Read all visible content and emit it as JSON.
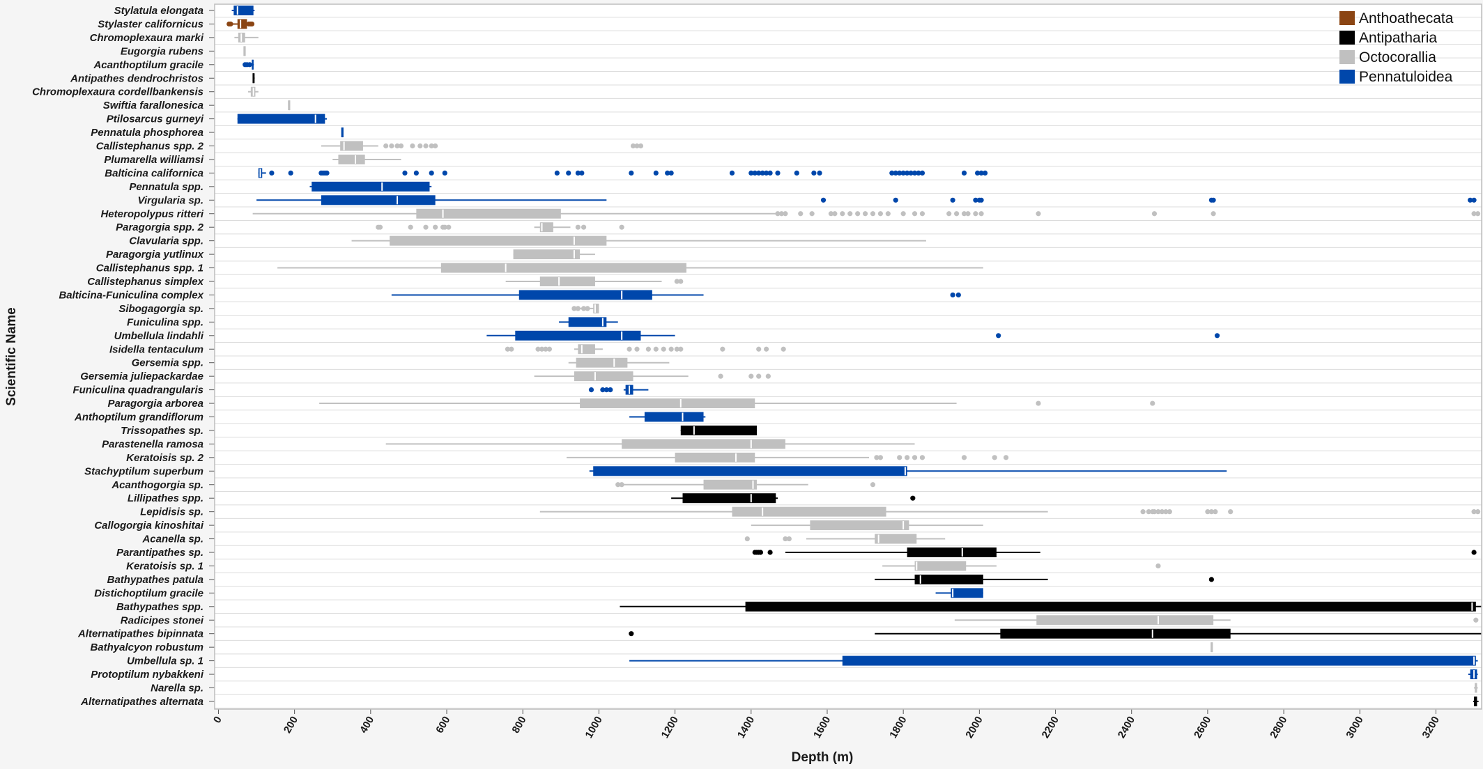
{
  "chart_data": {
    "type": "boxplot",
    "xlabel": "Depth (m)",
    "ylabel": "Scientific Name",
    "xlim": [
      -10,
      3320
    ],
    "x_ticks": [
      0,
      200,
      400,
      600,
      800,
      1000,
      1200,
      1400,
      1600,
      1800,
      2000,
      2200,
      2400,
      2600,
      2800,
      3000,
      3200
    ],
    "grid": "horizontal",
    "legend_position": "top-right",
    "groups": [
      {
        "name": "Anthoathecata",
        "color": "#8B4513"
      },
      {
        "name": "Antipatharia",
        "color": "#000000"
      },
      {
        "name": "Octocorallia",
        "color": "#C0C0C0"
      },
      {
        "name": "Pennatuloidea",
        "color": "#0047AB"
      }
    ],
    "rows": [
      {
        "name": "Stylatula elongata",
        "group": "Pennatuloidea",
        "min": 35,
        "q1": 40,
        "median": 50,
        "q3": 92,
        "max": 95,
        "outliers": []
      },
      {
        "name": "Stylaster californicus",
        "group": "Anthoathecata",
        "min": 28,
        "q1": 50,
        "median": 58,
        "q3": 75,
        "max": 88,
        "outliers": [
          28,
          32,
          80,
          85,
          88
        ]
      },
      {
        "name": "Chromoplexaura marki",
        "group": "Octocorallia",
        "min": 42,
        "q1": 52,
        "median": 60,
        "q3": 70,
        "max": 105,
        "outliers": []
      },
      {
        "name": "Eugorgia rubens",
        "group": "Octocorallia",
        "min": 68,
        "q1": 68,
        "median": 68,
        "q3": 68,
        "max": 68,
        "outliers": []
      },
      {
        "name": "Acanthoptilum gracile",
        "group": "Pennatuloidea",
        "min": 88,
        "q1": 88,
        "median": 90,
        "q3": 92,
        "max": 93,
        "outliers": [
          70,
          75,
          82
        ]
      },
      {
        "name": "Antipathes dendrochristos",
        "group": "Antipatharia",
        "min": 90,
        "q1": 90,
        "median": 92,
        "q3": 95,
        "max": 95,
        "outliers": []
      },
      {
        "name": "Chromoplexaura cordellbankensis",
        "group": "Octocorallia",
        "min": 78,
        "q1": 85,
        "median": 92,
        "q3": 97,
        "max": 105,
        "outliers": []
      },
      {
        "name": "Swiftia farallonesica",
        "group": "Octocorallia",
        "min": 185,
        "q1": 185,
        "median": 185,
        "q3": 185,
        "max": 185,
        "outliers": []
      },
      {
        "name": "Ptilosarcus gurneyi",
        "group": "Pennatuloidea",
        "min": 50,
        "q1": 50,
        "median": 255,
        "q3": 280,
        "max": 285,
        "outliers": []
      },
      {
        "name": "Pennatula phosphorea",
        "group": "Pennatuloidea",
        "min": 325,
        "q1": 325,
        "median": 325,
        "q3": 325,
        "max": 325,
        "outliers": []
      },
      {
        "name": "Callistephanus spp. 2",
        "group": "Octocorallia",
        "min": 270,
        "q1": 320,
        "median": 330,
        "q3": 380,
        "max": 420,
        "outliers": [
          440,
          455,
          470,
          480,
          510,
          530,
          545,
          560,
          570,
          1090,
          1100,
          1110
        ]
      },
      {
        "name": "Plumarella williamsi",
        "group": "Octocorallia",
        "min": 300,
        "q1": 315,
        "median": 360,
        "q3": 385,
        "max": 480,
        "outliers": []
      },
      {
        "name": "Balticina californica",
        "group": "Pennatuloidea",
        "min": 105,
        "q1": 105,
        "median": 110,
        "q3": 115,
        "max": 125,
        "outliers": [
          140,
          190,
          270,
          275,
          280,
          285,
          490,
          520,
          560,
          595,
          890,
          920,
          945,
          955,
          1085,
          1150,
          1180,
          1190,
          1350,
          1400,
          1410,
          1420,
          1430,
          1440,
          1450,
          1470,
          1520,
          1565,
          1580,
          1770,
          1780,
          1790,
          1800,
          1810,
          1820,
          1830,
          1840,
          1850,
          1960,
          1995,
          2005,
          2015
        ]
      },
      {
        "name": "Pennatula spp.",
        "group": "Pennatuloidea",
        "min": 240,
        "q1": 245,
        "median": 430,
        "q3": 555,
        "max": 560,
        "outliers": []
      },
      {
        "name": "Virgularia sp.",
        "group": "Pennatuloidea",
        "min": 100,
        "q1": 270,
        "median": 470,
        "q3": 570,
        "max": 1020,
        "outliers": [
          1590,
          1780,
          1930,
          1990,
          2000,
          2005,
          2610,
          2615,
          3290,
          3300
        ]
      },
      {
        "name": "Heteropolypus ritteri",
        "group": "Octocorallia",
        "min": 90,
        "q1": 520,
        "median": 590,
        "q3": 900,
        "max": 1465,
        "outliers": [
          1470,
          1480,
          1490,
          1530,
          1560,
          1610,
          1620,
          1640,
          1660,
          1680,
          1700,
          1720,
          1740,
          1760,
          1800,
          1830,
          1850,
          1920,
          1940,
          1960,
          1970,
          1990,
          2005,
          2155,
          2460,
          2615,
          3300,
          3310
        ]
      },
      {
        "name": "Paragorgia spp. 2",
        "group": "Octocorallia",
        "min": 830,
        "q1": 845,
        "median": 850,
        "q3": 880,
        "max": 925,
        "outliers": [
          420,
          425,
          505,
          545,
          570,
          590,
          595,
          605,
          945,
          960,
          1060
        ]
      },
      {
        "name": "Clavularia spp.",
        "group": "Octocorallia",
        "min": 350,
        "q1": 450,
        "median": 935,
        "q3": 1020,
        "max": 1860,
        "outliers": []
      },
      {
        "name": "Paragorgia yutlinux",
        "group": "Octocorallia",
        "min": 775,
        "q1": 775,
        "median": 935,
        "q3": 950,
        "max": 990,
        "outliers": []
      },
      {
        "name": "Callistephanus spp. 1",
        "group": "Octocorallia",
        "min": 155,
        "q1": 585,
        "median": 755,
        "q3": 1230,
        "max": 2010,
        "outliers": []
      },
      {
        "name": "Callistephanus simplex",
        "group": "Octocorallia",
        "min": 755,
        "q1": 845,
        "median": 895,
        "q3": 990,
        "max": 1165,
        "outliers": [
          1205,
          1215
        ]
      },
      {
        "name": "Balticina-Funiculina complex",
        "group": "Pennatuloidea",
        "min": 455,
        "q1": 790,
        "median": 1060,
        "q3": 1140,
        "max": 1275,
        "outliers": [
          1930,
          1945
        ]
      },
      {
        "name": "Sibogagorgia sp.",
        "group": "Octocorallia",
        "min": 930,
        "q1": 985,
        "median": 990,
        "q3": 1000,
        "max": 1000,
        "outliers": [
          935,
          945,
          960,
          970
        ]
      },
      {
        "name": "Funiculina spp.",
        "group": "Pennatuloidea",
        "min": 895,
        "q1": 920,
        "median": 1010,
        "q3": 1020,
        "max": 1050,
        "outliers": []
      },
      {
        "name": "Umbellula lindahli",
        "group": "Pennatuloidea",
        "min": 705,
        "q1": 780,
        "median": 1060,
        "q3": 1110,
        "max": 1200,
        "outliers": [
          2050,
          2625
        ]
      },
      {
        "name": "Isidella tentaculum",
        "group": "Octocorallia",
        "min": 935,
        "q1": 945,
        "median": 955,
        "q3": 990,
        "max": 1010,
        "outliers": [
          760,
          770,
          840,
          850,
          860,
          870,
          1080,
          1100,
          1130,
          1150,
          1170,
          1190,
          1205,
          1215,
          1325,
          1420,
          1440,
          1485
        ]
      },
      {
        "name": "Gersemia spp.",
        "group": "Octocorallia",
        "min": 920,
        "q1": 940,
        "median": 1040,
        "q3": 1075,
        "max": 1185,
        "outliers": []
      },
      {
        "name": "Gersemia juliepackardae",
        "group": "Octocorallia",
        "min": 830,
        "q1": 935,
        "median": 990,
        "q3": 1090,
        "max": 1235,
        "outliers": [
          1320,
          1400,
          1420,
          1445
        ]
      },
      {
        "name": "Funiculina quadrangularis",
        "group": "Pennatuloidea",
        "min": 1065,
        "q1": 1070,
        "median": 1080,
        "q3": 1090,
        "max": 1130,
        "outliers": [
          980,
          1010,
          1020,
          1030
        ]
      },
      {
        "name": "Paragorgia arborea",
        "group": "Octocorallia",
        "min": 265,
        "q1": 950,
        "median": 1215,
        "q3": 1410,
        "max": 1940,
        "outliers": [
          2155,
          2455
        ]
      },
      {
        "name": "Anthoptilum grandiflorum",
        "group": "Pennatuloidea",
        "min": 1080,
        "q1": 1120,
        "median": 1220,
        "q3": 1275,
        "max": 1280,
        "outliers": []
      },
      {
        "name": "Trissopathes sp.",
        "group": "Antipatharia",
        "min": 1215,
        "q1": 1215,
        "median": 1250,
        "q3": 1415,
        "max": 1415,
        "outliers": []
      },
      {
        "name": "Parastenella ramosa",
        "group": "Octocorallia",
        "min": 440,
        "q1": 1060,
        "median": 1400,
        "q3": 1490,
        "max": 1830,
        "outliers": []
      },
      {
        "name": "Keratoisis sp. 2",
        "group": "Octocorallia",
        "min": 915,
        "q1": 1200,
        "median": 1360,
        "q3": 1410,
        "max": 1710,
        "outliers": [
          1730,
          1740,
          1790,
          1810,
          1830,
          1850,
          1960,
          2040,
          2070
        ]
      },
      {
        "name": "Stachyptilum superbum",
        "group": "Pennatuloidea",
        "min": 975,
        "q1": 985,
        "median": 1805,
        "q3": 1810,
        "max": 2650,
        "outliers": []
      },
      {
        "name": "Acanthogorgia sp.",
        "group": "Octocorallia",
        "min": 1060,
        "q1": 1275,
        "median": 1405,
        "q3": 1415,
        "max": 1550,
        "outliers": [
          1050,
          1060,
          1720
        ]
      },
      {
        "name": "Lillipathes spp.",
        "group": "Antipatharia",
        "min": 1190,
        "q1": 1220,
        "median": 1400,
        "q3": 1465,
        "max": 1470,
        "outliers": [
          1825
        ]
      },
      {
        "name": "Lepidisis sp.",
        "group": "Octocorallia",
        "min": 845,
        "q1": 1350,
        "median": 1430,
        "q3": 1755,
        "max": 2180,
        "outliers": [
          2430,
          2445,
          2455,
          2460,
          2470,
          2480,
          2490,
          2500,
          2600,
          2610,
          2620,
          2660,
          3300,
          3310
        ]
      },
      {
        "name": "Callogorgia kinoshitai",
        "group": "Octocorallia",
        "min": 1400,
        "q1": 1555,
        "median": 1800,
        "q3": 1815,
        "max": 2010,
        "outliers": []
      },
      {
        "name": "Acanella sp.",
        "group": "Octocorallia",
        "min": 1545,
        "q1": 1725,
        "median": 1735,
        "q3": 1835,
        "max": 1910,
        "outliers": [
          1390,
          1490,
          1500
        ]
      },
      {
        "name": "Parantipathes sp.",
        "group": "Antipatharia",
        "min": 1490,
        "q1": 1810,
        "median": 1955,
        "q3": 2045,
        "max": 2160,
        "outliers": [
          1410,
          1415,
          1420,
          1425,
          1450,
          3300
        ]
      },
      {
        "name": "Keratoisis sp. 1",
        "group": "Octocorallia",
        "min": 1745,
        "q1": 1830,
        "median": 1835,
        "q3": 1965,
        "max": 2045,
        "outliers": [
          2470
        ]
      },
      {
        "name": "Bathypathes patula",
        "group": "Antipatharia",
        "min": 1725,
        "q1": 1830,
        "median": 1845,
        "q3": 2010,
        "max": 2180,
        "outliers": [
          2610
        ]
      },
      {
        "name": "Distichoptilum gracile",
        "group": "Pennatuloidea",
        "min": 1885,
        "q1": 1925,
        "median": 1930,
        "q3": 2010,
        "max": 2010,
        "outliers": []
      },
      {
        "name": "Bathypathes spp.",
        "group": "Antipatharia",
        "min": 1055,
        "q1": 1385,
        "median": 3295,
        "q3": 3305,
        "max": 3320,
        "outliers": []
      },
      {
        "name": "Radicipes stonei",
        "group": "Octocorallia",
        "min": 1935,
        "q1": 2150,
        "median": 2470,
        "q3": 2615,
        "max": 2660,
        "outliers": [
          3305
        ]
      },
      {
        "name": "Alternatipathes bipinnata",
        "group": "Antipatharia",
        "min": 1725,
        "q1": 2055,
        "median": 2455,
        "q3": 2660,
        "max": 3320,
        "outliers": [
          1085
        ]
      },
      {
        "name": "Bathyalcyon robustum",
        "group": "Octocorallia",
        "min": 2610,
        "q1": 2610,
        "median": 2610,
        "q3": 2610,
        "max": 2610,
        "outliers": []
      },
      {
        "name": "Umbellula sp. 1",
        "group": "Pennatuloidea",
        "min": 1080,
        "q1": 1640,
        "median": 3300,
        "q3": 3305,
        "max": 3310,
        "outliers": []
      },
      {
        "name": "Protoptilum nybakkeni",
        "group": "Pennatuloidea",
        "min": 3285,
        "q1": 3290,
        "median": 3300,
        "q3": 3308,
        "max": 3310,
        "outliers": []
      },
      {
        "name": "Narella sp.",
        "group": "Octocorallia",
        "min": 3300,
        "q1": 3302,
        "median": 3305,
        "q3": 3308,
        "max": 3310,
        "outliers": []
      },
      {
        "name": "Alternatipathes alternata",
        "group": "Antipatharia",
        "min": 3298,
        "q1": 3300,
        "median": 3305,
        "q3": 3308,
        "max": 3312,
        "outliers": []
      }
    ]
  }
}
